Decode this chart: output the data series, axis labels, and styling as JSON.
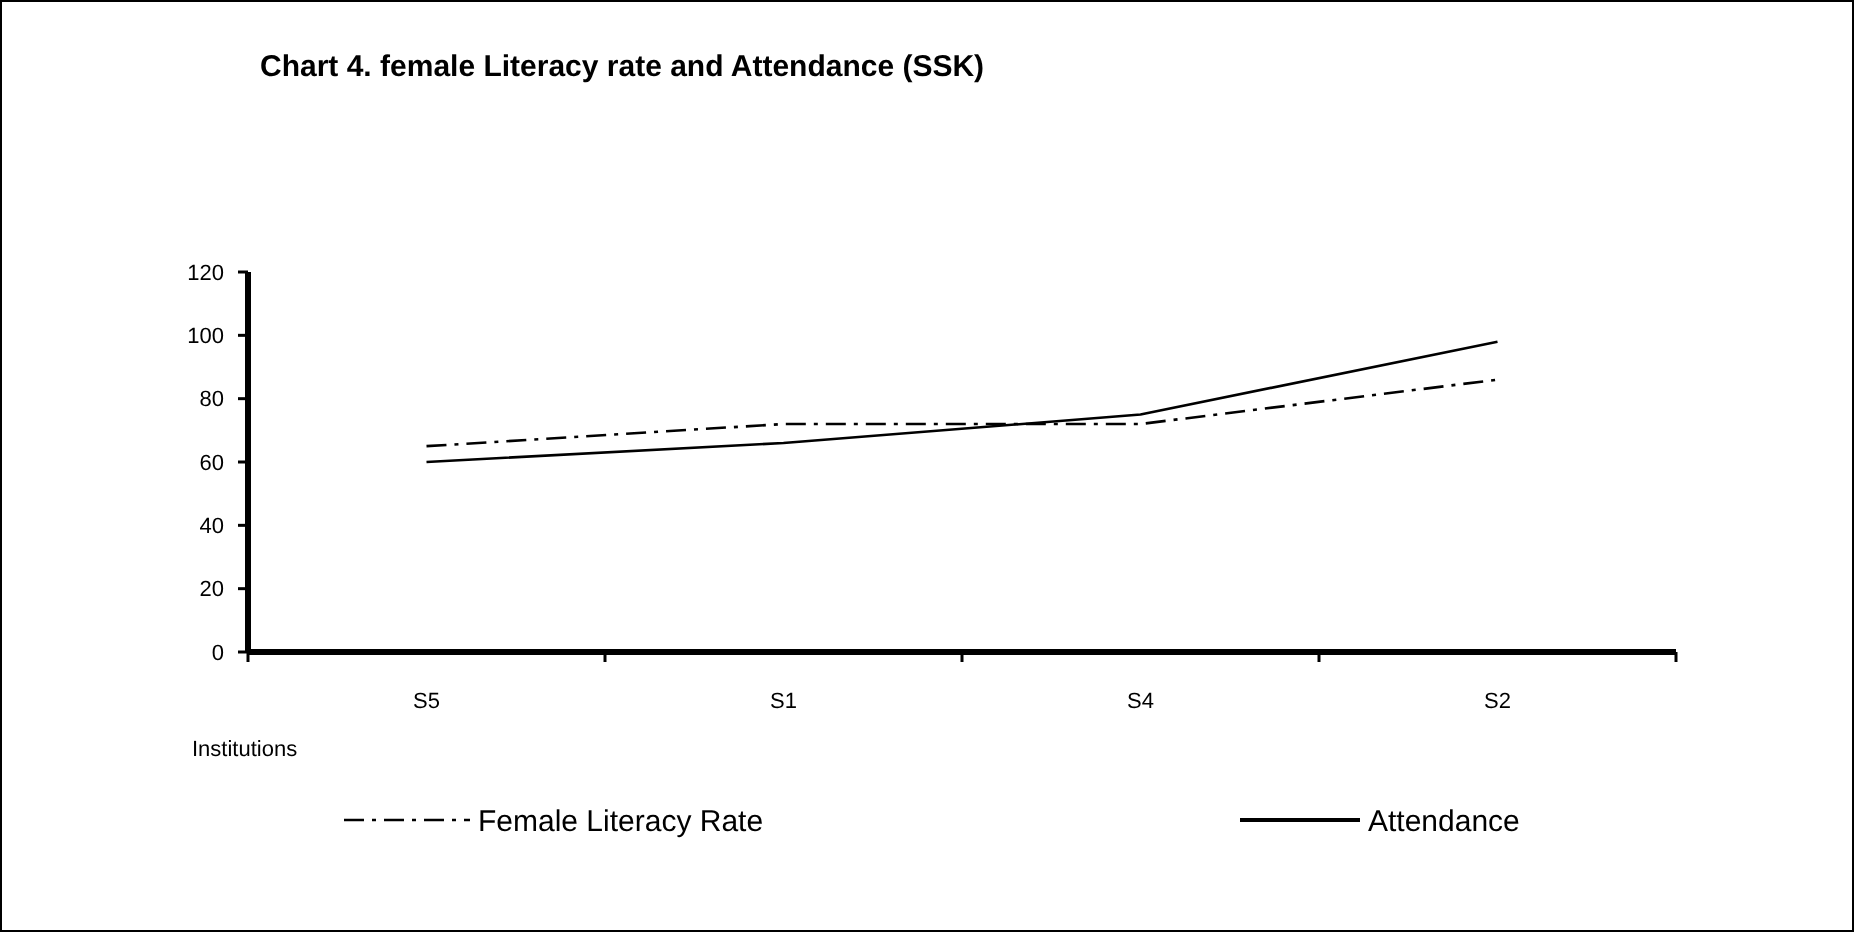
{
  "chart_data": {
    "type": "line",
    "title": "Chart 4. female Literacy rate and Attendance (SSK)",
    "xlabel": "Institutions",
    "categories": [
      "S5",
      "S1",
      "S4",
      "S2"
    ],
    "series": [
      {
        "name": "Female Literacy Rate",
        "color": "#000000",
        "values": [
          65,
          72,
          72,
          86
        ],
        "line_style": "dashdot"
      },
      {
        "name": "Attendance",
        "color": "#000000",
        "values": [
          60,
          66,
          75,
          98
        ],
        "line_style": "solid"
      }
    ],
    "ylim": [
      0,
      120
    ],
    "yticks": [
      0,
      20,
      40,
      60,
      80,
      100,
      120
    ],
    "grid": false,
    "legend": "bottom",
    "marker": "none"
  }
}
